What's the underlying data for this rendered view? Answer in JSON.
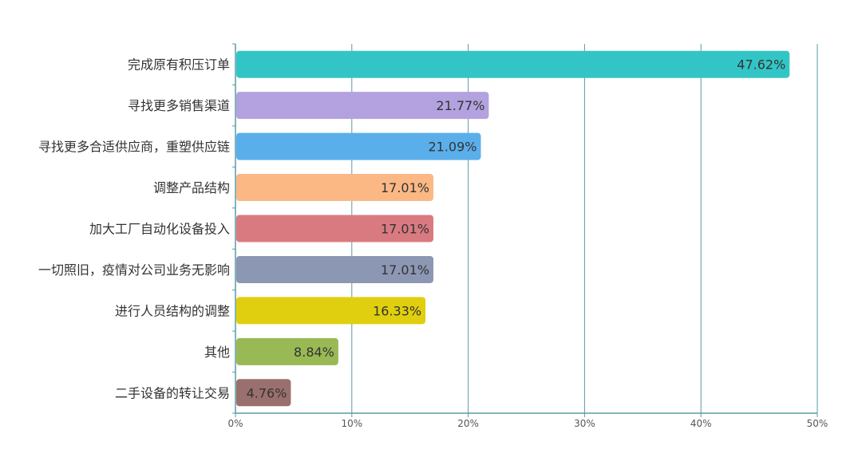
{
  "chart_data": {
    "type": "bar",
    "orientation": "horizontal",
    "title": "",
    "xlabel": "",
    "ylabel": "",
    "xlim": [
      0,
      50
    ],
    "x_ticks": [
      "0%",
      "10%",
      "20%",
      "30%",
      "40%",
      "50%"
    ],
    "grid": "vertical",
    "legend": "none",
    "categories": [
      "完成原有积压订单",
      "寻找更多销售渠道",
      "寻找更多合适供应商，重塑供应链",
      "调整产品结构",
      "加大工厂自动化设备投入",
      "一切照旧，疫情对公司业务无影响",
      "进行人员结构的调整",
      "其他",
      "二手设备的转让交易"
    ],
    "values": [
      47.62,
      21.77,
      21.09,
      17.01,
      17.01,
      17.01,
      16.33,
      8.84,
      4.76
    ],
    "value_labels": [
      "47.62%",
      "21.77%",
      "21.09%",
      "17.01%",
      "17.01%",
      "17.01%",
      "16.33%",
      "8.84%",
      "4.76%"
    ],
    "colors": [
      "#33c5c6",
      "#b3a2df",
      "#5aafeb",
      "#fbb884",
      "#d97a80",
      "#8c97b3",
      "#e0cf0e",
      "#99b955",
      "#99706d"
    ],
    "axis_color": "#5b9aa6",
    "grid_color": "#5b9aa6"
  }
}
